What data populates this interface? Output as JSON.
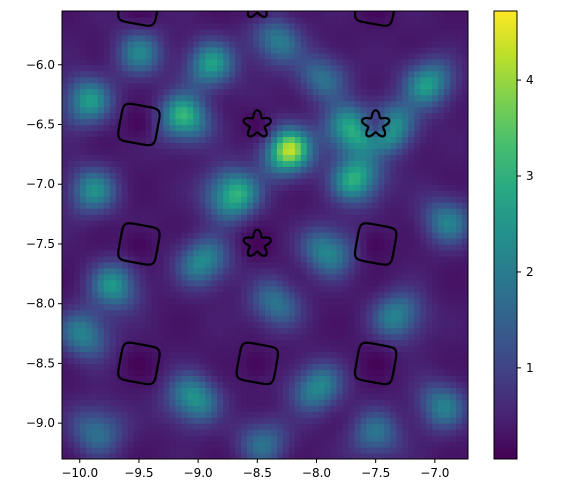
{
  "chart_data": {
    "type": "heatmap",
    "title": "",
    "xlabel": "",
    "ylabel": "",
    "xlim": [
      -10.15,
      -6.72
    ],
    "ylim": [
      -9.3,
      -5.55
    ],
    "grid": false,
    "x_ticks": [
      -10.0,
      -9.5,
      -9.0,
      -8.5,
      -8.0,
      -7.5,
      -7.0
    ],
    "x_tick_labels": [
      "−10.0",
      "−9.5",
      "−9.0",
      "−8.5",
      "−8.0",
      "−7.5",
      "−7.0"
    ],
    "y_ticks": [
      -6.0,
      -6.5,
      -7.0,
      -7.5,
      -8.0,
      -8.5,
      -9.0
    ],
    "y_tick_labels": [
      "−6.0",
      "−6.5",
      "−7.0",
      "−7.5",
      "−8.0",
      "−8.5",
      "−9.0"
    ],
    "colormap": "viridis",
    "color_range": [
      0.05,
      4.72
    ],
    "colorbar_ticks": [
      1,
      2,
      3,
      4
    ],
    "colorbar_tick_labels": [
      "1",
      "2",
      "3",
      "4"
    ],
    "hotspots": [
      {
        "x": -8.25,
        "y": -6.72,
        "value": 4.7
      },
      {
        "x": -8.72,
        "y": -7.08,
        "value": 4.2
      },
      {
        "x": -7.72,
        "y": -6.55,
        "value": 3.9
      },
      {
        "x": -7.65,
        "y": -6.95,
        "value": 3.7
      },
      {
        "x": -9.12,
        "y": -6.45,
        "value": 3.7
      },
      {
        "x": -7.38,
        "y": -6.52,
        "value": 3.6
      },
      {
        "x": -9.05,
        "y": -8.8,
        "value": 3.2
      },
      {
        "x": -7.05,
        "y": -6.15,
        "value": 3.1
      },
      {
        "x": -8.9,
        "y": -6.0,
        "value": 3.0
      },
      {
        "x": -9.95,
        "y": -6.3,
        "value": 3.0
      },
      {
        "x": -7.9,
        "y": -7.55,
        "value": 2.9
      },
      {
        "x": -8.95,
        "y": -7.65,
        "value": 2.9
      },
      {
        "x": -9.7,
        "y": -7.85,
        "value": 2.8
      },
      {
        "x": -8.0,
        "y": -8.7,
        "value": 2.8
      },
      {
        "x": -7.3,
        "y": -8.1,
        "value": 2.7
      },
      {
        "x": -9.95,
        "y": -8.25,
        "value": 2.7
      },
      {
        "x": -9.9,
        "y": -7.05,
        "value": 2.6
      },
      {
        "x": -8.35,
        "y": -5.8,
        "value": 2.5
      },
      {
        "x": -9.85,
        "y": -9.05,
        "value": 2.4
      },
      {
        "x": -6.9,
        "y": -7.3,
        "value": 2.4
      },
      {
        "x": -6.95,
        "y": -8.85,
        "value": 2.4
      },
      {
        "x": -8.35,
        "y": -8.0,
        "value": 2.3
      },
      {
        "x": -9.5,
        "y": -5.9,
        "value": 2.3
      },
      {
        "x": -7.5,
        "y": -9.1,
        "value": 2.2
      },
      {
        "x": -8.45,
        "y": -9.15,
        "value": 2.1
      },
      {
        "x": -7.95,
        "y": -6.1,
        "value": 2.2
      }
    ],
    "contours": [
      {
        "shape": "rounded-square",
        "x": -9.5,
        "y": -5.5
      },
      {
        "shape": "star",
        "x": -8.5,
        "y": -5.5
      },
      {
        "shape": "rounded-square",
        "x": -7.5,
        "y": -5.5
      },
      {
        "shape": "rounded-square",
        "x": -9.5,
        "y": -6.5
      },
      {
        "shape": "star",
        "x": -8.5,
        "y": -6.5
      },
      {
        "shape": "star",
        "x": -7.5,
        "y": -6.5
      },
      {
        "shape": "rounded-square",
        "x": -9.5,
        "y": -7.5
      },
      {
        "shape": "star",
        "x": -8.5,
        "y": -7.5
      },
      {
        "shape": "rounded-square",
        "x": -7.5,
        "y": -7.5
      },
      {
        "shape": "rounded-square",
        "x": -9.5,
        "y": -8.5
      },
      {
        "shape": "rounded-square",
        "x": -8.5,
        "y": -8.5
      },
      {
        "shape": "rounded-square",
        "x": -7.5,
        "y": -8.5
      }
    ]
  }
}
